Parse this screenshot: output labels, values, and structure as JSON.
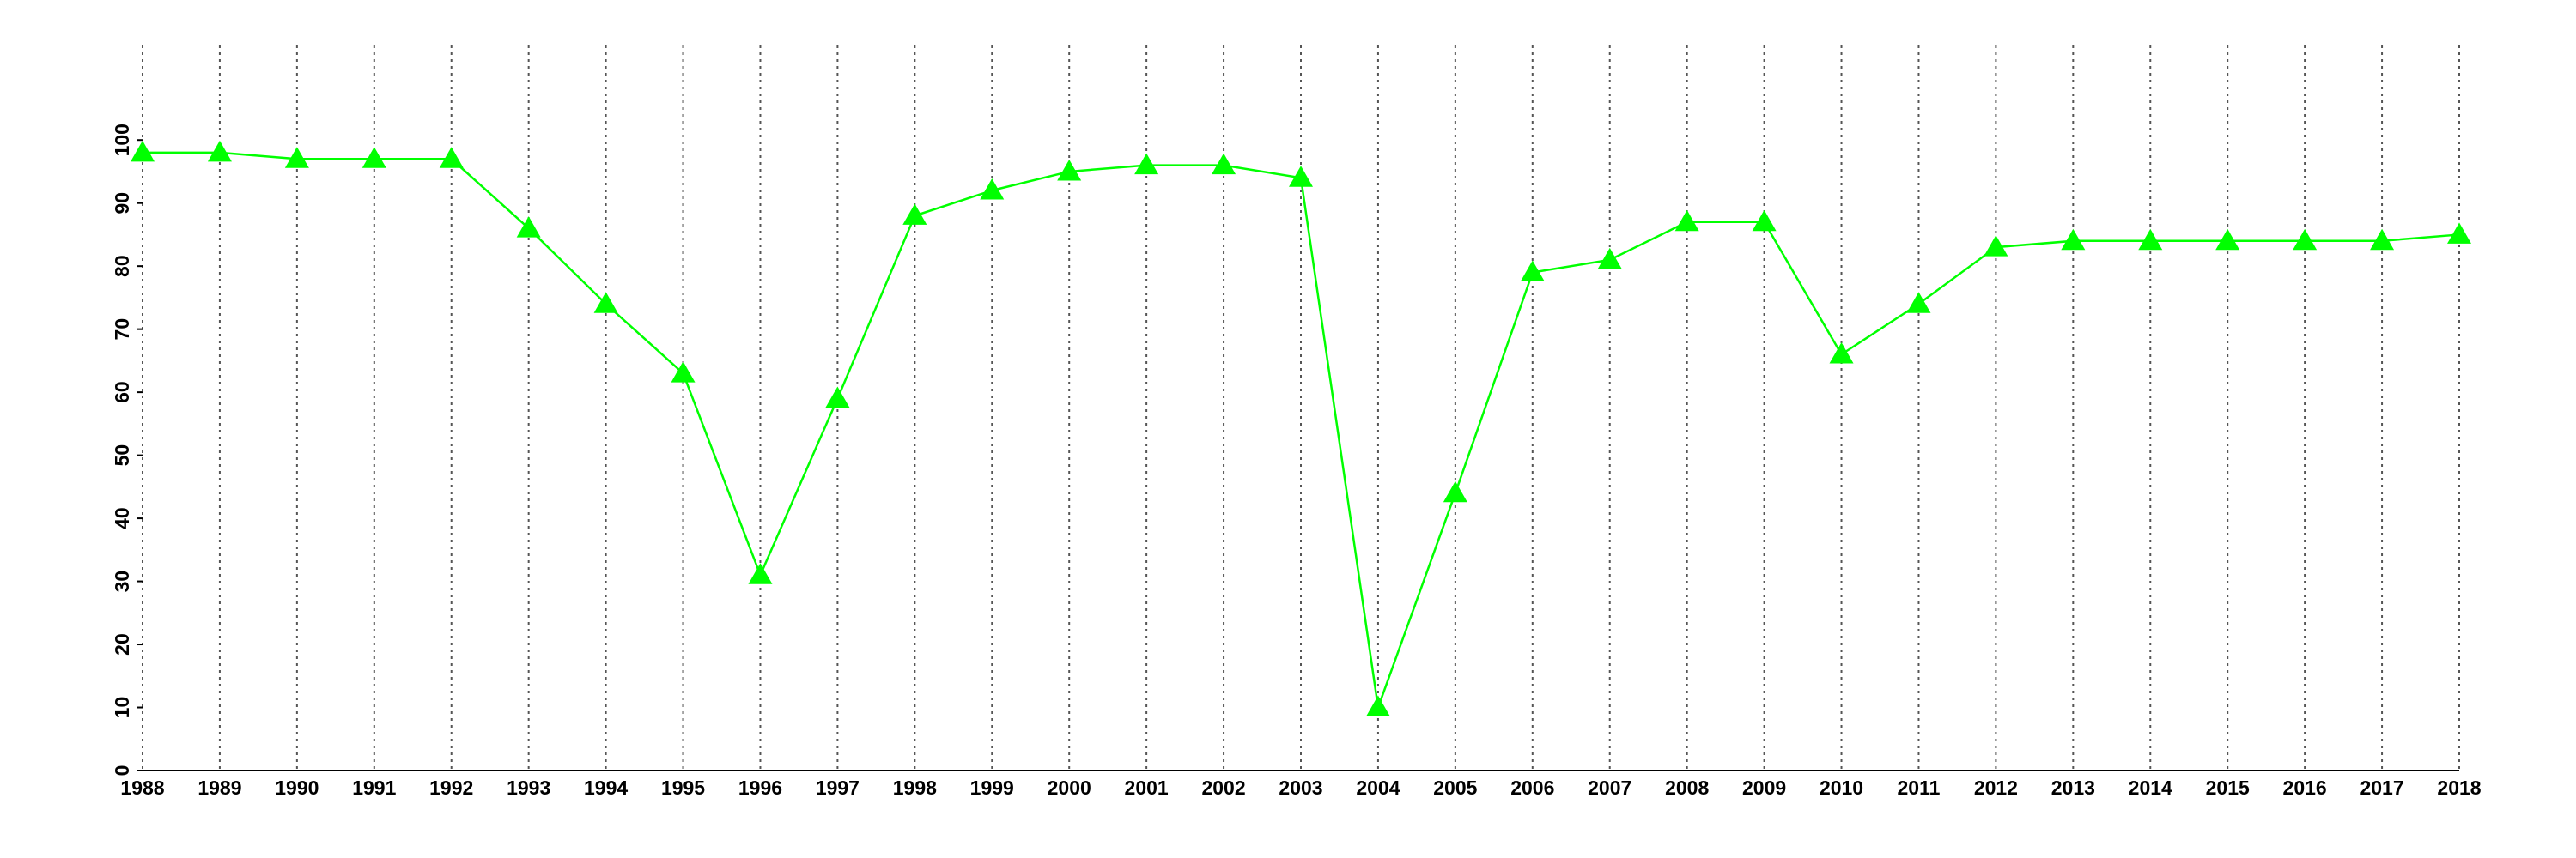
{
  "chart_data": {
    "type": "line",
    "x": [
      1988,
      1989,
      1990,
      1991,
      1992,
      1993,
      1994,
      1995,
      1996,
      1997,
      1998,
      1999,
      2000,
      2001,
      2002,
      2003,
      2004,
      2005,
      2006,
      2007,
      2008,
      2009,
      2010,
      2011,
      2012,
      2013,
      2014,
      2015,
      2016,
      2017,
      2018
    ],
    "series": [
      {
        "color": "#00ff00",
        "values": [
          98,
          98,
          97,
          97,
          97,
          86,
          74,
          63,
          31,
          59,
          88,
          92,
          95,
          96,
          96,
          94,
          10,
          44,
          79,
          81,
          87,
          87,
          66,
          74,
          83,
          84,
          84,
          84,
          84,
          84,
          85
        ]
      }
    ],
    "xlim": [
      1988,
      2018
    ],
    "xticks": [
      1988,
      1989,
      1990,
      1991,
      1992,
      1993,
      1994,
      1995,
      1996,
      1997,
      1998,
      1999,
      2000,
      2001,
      2002,
      2003,
      2004,
      2005,
      2006,
      2007,
      2008,
      2009,
      2010,
      2011,
      2012,
      2013,
      2014,
      2015,
      2016,
      2017,
      2018
    ],
    "ylim": [
      0,
      115
    ],
    "yticks": [
      0,
      10,
      20,
      30,
      40,
      50,
      60,
      70,
      80,
      90,
      100
    ],
    "grid": true
  }
}
